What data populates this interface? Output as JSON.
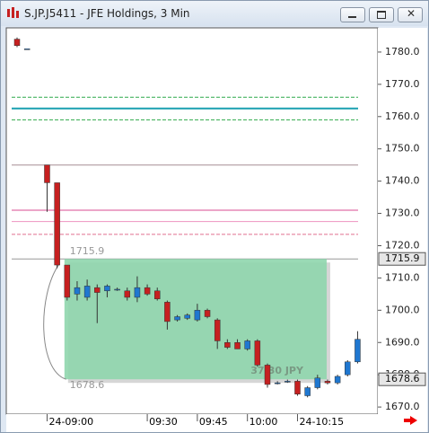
{
  "window_title": "S.JP.J5411 - JFE Holdings, 3 Min",
  "chart_data": {
    "type": "candlestick",
    "categories": [
      null,
      null,
      null,
      "24-09:00",
      null,
      null,
      null,
      null,
      null,
      null,
      null,
      null,
      null,
      "09:30",
      null,
      null,
      null,
      null,
      "09:45",
      null,
      null,
      null,
      null,
      "10:00",
      null,
      null,
      null,
      null,
      "24-10:15",
      null,
      null,
      null,
      null,
      null,
      null
    ],
    "open": [
      1784,
      1781,
      null,
      1745,
      1739.5,
      1714,
      1705,
      1704,
      1707,
      1706,
      1706.5,
      1706,
      1704,
      1707,
      1706,
      1702.5,
      1697,
      1697.5,
      1697,
      1700,
      1697,
      1690,
      1690,
      1688,
      1690.5,
      1683,
      1677.5,
      1678,
      1678,
      1673.5,
      1676,
      1678,
      1677.5,
      1680,
      1684
    ],
    "high": [
      1784.5,
      1781,
      null,
      1745,
      1739.5,
      1714,
      1709,
      1709.5,
      1708,
      1708,
      1707,
      1707,
      1710.5,
      1708,
      1707,
      1703,
      1698.5,
      1699,
      1702,
      1700.5,
      1697.5,
      1691,
      1691,
      1691,
      1691,
      1683.5,
      1678,
      1678.5,
      1678.5,
      1676.5,
      1680,
      1678.5,
      1680,
      1684.5,
      1693.5
    ],
    "low": [
      1781.5,
      1781,
      null,
      1730.5,
      1713,
      1703,
      1703,
      1703,
      1696,
      1704,
      1706,
      1703,
      1702.5,
      1704.5,
      1703,
      1694,
      1696.5,
      1697,
      1696.5,
      1697.5,
      1688,
      1688,
      1688,
      1687.5,
      1682.5,
      1676,
      1677,
      1677.5,
      1673.5,
      1673,
      1675.5,
      1677,
      1677,
      1679.5,
      1683.5
    ],
    "close": [
      1782,
      1781,
      null,
      1739.5,
      1714,
      1704,
      1707,
      1707.5,
      1705.5,
      1707.5,
      1706.5,
      1704,
      1707,
      1705,
      1703.5,
      1696.5,
      1698,
      1698.5,
      1700,
      1698,
      1690.5,
      1688.5,
      1688,
      1690.5,
      1683,
      1677,
      1677.5,
      1678,
      1674,
      1676,
      1679,
      1677.5,
      1679.5,
      1684,
      1691
    ],
    "up_color": "#1f77d0",
    "down_color": "#c62020",
    "ylim": [
      1667.8,
      1787.5
    ],
    "yticks": [
      {
        "value": 1670,
        "label": "1670.0"
      },
      {
        "value": 1680,
        "label": "1680.0"
      },
      {
        "value": 1690,
        "label": "1690.0"
      },
      {
        "value": 1700,
        "label": "1700.0"
      },
      {
        "value": 1710,
        "label": "1710.0"
      },
      {
        "value": 1720,
        "label": "1720.0"
      },
      {
        "value": 1730,
        "label": "1730.0"
      },
      {
        "value": 1740,
        "label": "1740.0"
      },
      {
        "value": 1750,
        "label": "1750.0"
      },
      {
        "value": 1760,
        "label": "1760.0"
      },
      {
        "value": 1770,
        "label": "1770.0"
      },
      {
        "value": 1780,
        "label": "1780.0"
      }
    ],
    "horizontal_lines": [
      {
        "value": 1766,
        "color": "#2eaa4a",
        "dashed": true
      },
      {
        "value": 1762.5,
        "color": "#1aa0b0",
        "dashed": false
      },
      {
        "value": 1759,
        "color": "#2eaa4a",
        "dashed": true
      },
      {
        "value": 1745,
        "color": "#b09aa0",
        "dashed": false
      },
      {
        "value": 1731,
        "color": "#e070a8",
        "dashed": false
      },
      {
        "value": 1727.5,
        "color": "#f0a0c8",
        "dashed": false
      },
      {
        "value": 1723.5,
        "color": "#e07090",
        "dashed": true
      }
    ],
    "measure": {
      "from": 1715.9,
      "to": 1678.6,
      "label": "37.30 JPY",
      "color": "#8fd6ad"
    }
  }
}
